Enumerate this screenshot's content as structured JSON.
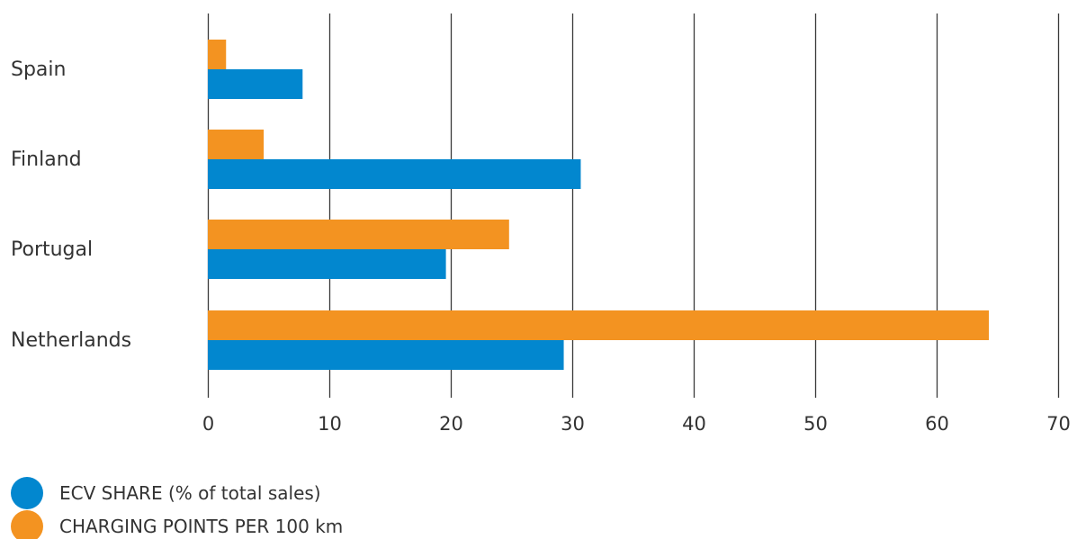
{
  "chart_data": {
    "type": "bar",
    "orientation": "horizontal",
    "categories": [
      "Spain",
      "Finland",
      "Portugal",
      "Netherlands"
    ],
    "series": [
      {
        "name": "CHARGING POINTS PER 100 km",
        "values": [
          1.5,
          4.6,
          24.8,
          64.3
        ],
        "color": "#f39321"
      },
      {
        "name": "ECV SHARE (% of total sales)",
        "values": [
          7.8,
          30.7,
          19.6,
          29.3
        ],
        "color": "#0287cf"
      }
    ],
    "xlim": [
      0,
      70
    ],
    "xticks": [
      "0",
      "10",
      "20",
      "30",
      "40",
      "50",
      "60",
      "70"
    ],
    "grid": "vertical",
    "legend_placement": "bottom-left",
    "title": "",
    "xlabel": "",
    "ylabel": ""
  },
  "legend": [
    {
      "label": "ECV SHARE (% of total sales)",
      "color": "#0287cf"
    },
    {
      "label": "CHARGING POINTS PER 100 km",
      "color": "#f39321"
    }
  ],
  "colors": {
    "grid": "#3a3a3a",
    "text": "#333333"
  }
}
